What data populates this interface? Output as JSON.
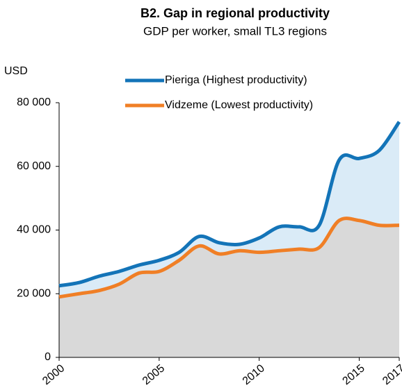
{
  "chart_data": {
    "type": "line",
    "title": "B2. Gap in regional productivity",
    "subtitle": "GDP per worker, small TL3 regions",
    "y_label": "USD",
    "x": [
      2000,
      2001,
      2002,
      2003,
      2004,
      2005,
      2006,
      2007,
      2008,
      2009,
      2010,
      2011,
      2012,
      2013,
      2014,
      2015,
      2016,
      2017
    ],
    "series": [
      {
        "name": "Pieriga (Highest productivity)",
        "color": "#1374b8",
        "values": [
          22500,
          23500,
          25500,
          27000,
          29000,
          30500,
          33000,
          38000,
          36000,
          35500,
          37500,
          41000,
          41000,
          41500,
          62000,
          62500,
          65000,
          74000
        ]
      },
      {
        "name": "Vidzeme (Lowest productivity)",
        "color": "#f07f26",
        "values": [
          19000,
          20000,
          21000,
          23000,
          26500,
          27000,
          30500,
          35000,
          32500,
          33500,
          33000,
          33500,
          34000,
          34500,
          43000,
          43000,
          41500,
          41500
        ]
      }
    ],
    "xlim": [
      2000,
      2017
    ],
    "xticks": [
      2000,
      2005,
      2010,
      2015,
      2017
    ],
    "ylim": [
      0,
      80000
    ],
    "yticks": [
      0,
      {
        "value": 20000,
        "label": "20 000"
      },
      {
        "value": 40000,
        "label": "40 000"
      },
      {
        "value": 60000,
        "label": "60 000"
      },
      {
        "value": 80000,
        "label": "80 000"
      }
    ],
    "legend": "top"
  }
}
